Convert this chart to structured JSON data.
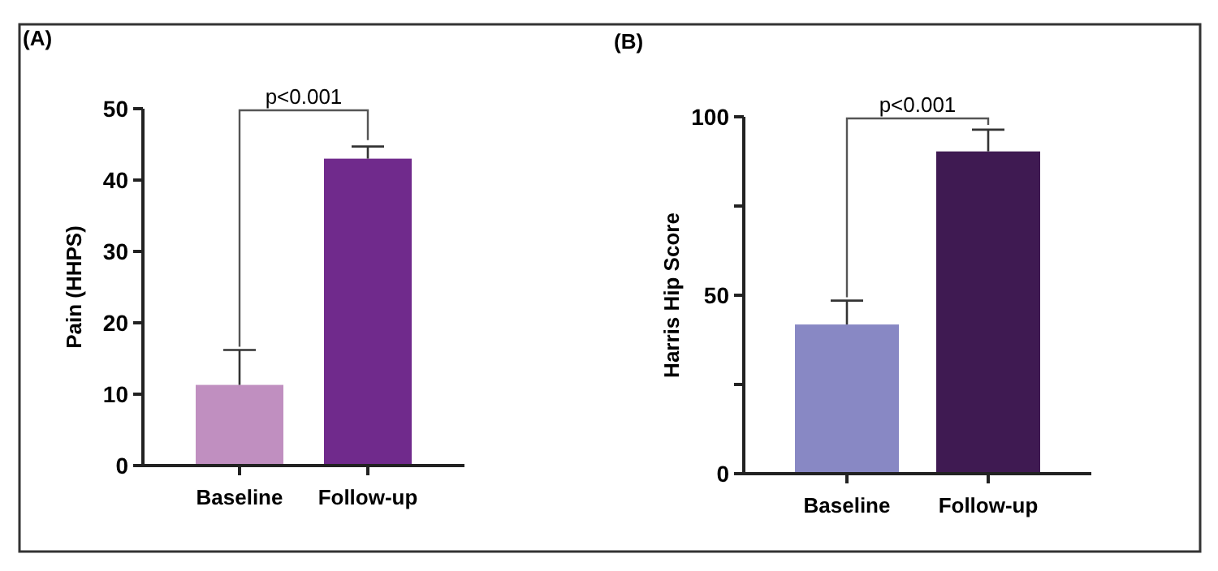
{
  "chart_data": [
    {
      "type": "bar",
      "title": "(A)",
      "ylabel": "Pain (HHPS)",
      "categories": [
        "Baseline",
        "Follow-up"
      ],
      "values": [
        11.3,
        43.0
      ],
      "colors": [
        "#c08fc0",
        "#702a8c"
      ],
      "errors": [
        [
          11.3,
          16.2
        ],
        [
          43.0,
          44.7
        ]
      ],
      "ylim": [
        0,
        50
      ],
      "yticks": [
        0,
        10,
        20,
        30,
        40,
        50
      ],
      "annotations": [
        "p<0.001"
      ]
    },
    {
      "type": "bar",
      "title": "(B)",
      "ylabel": "Harris Hip Score",
      "categories": [
        "Baseline",
        "Follow-up"
      ],
      "values": [
        41.8,
        90.3
      ],
      "colors": [
        "#8888c4",
        "#3f1a52"
      ],
      "errors": [
        [
          41.8,
          48.5
        ],
        [
          90.3,
          96.4
        ]
      ],
      "ylim": [
        0,
        100
      ],
      "yticks": [
        0,
        {
          "value": 25,
          "label": null
        },
        50,
        {
          "value": 75,
          "label": null
        },
        100
      ],
      "annotations": [
        "p<0.001"
      ]
    }
  ]
}
